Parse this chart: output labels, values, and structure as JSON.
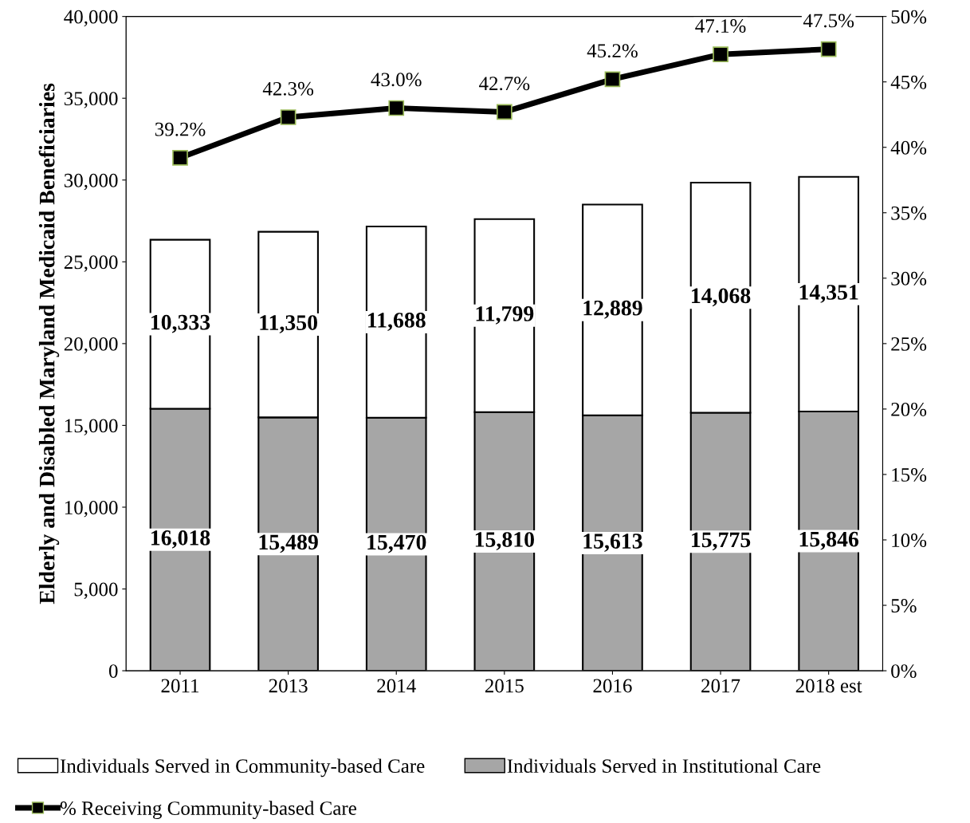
{
  "chart_data": {
    "type": "bar",
    "stacked": true,
    "ylabel": "Elderly and Disabled Maryland Medicaid Beneficiaries",
    "categories": [
      "2011",
      "2013",
      "2014",
      "2015",
      "2016",
      "2017",
      "2018 est"
    ],
    "series": [
      {
        "name": "Individuals Served in Institutional Care",
        "color": "#a6a6a6",
        "values": [
          16018,
          15489,
          15470,
          15810,
          15613,
          15775,
          15846
        ],
        "value_labels": [
          "16,018",
          "15,489",
          "15,470",
          "15,810",
          "15,613",
          "15,775",
          "15,846"
        ]
      },
      {
        "name": "Individuals Served in Community-based Care",
        "color": "#ffffff",
        "values": [
          10333,
          11350,
          11688,
          11799,
          12889,
          14068,
          14351
        ],
        "value_labels": [
          "10,333",
          "11,350",
          "11,688",
          "11,799",
          "12,889",
          "14,068",
          "14,351"
        ]
      },
      {
        "name": "% Receiving Community-based Care",
        "type": "line",
        "axis": "y2",
        "color": "#000000",
        "marker": "square",
        "values": [
          39.2,
          42.3,
          43.0,
          42.7,
          45.2,
          47.1,
          47.5
        ],
        "value_labels": [
          "39.2%",
          "42.3%",
          "43.0%",
          "42.7%",
          "45.2%",
          "47.1%",
          "47.5%"
        ]
      }
    ],
    "ylim": [
      0,
      40000
    ],
    "yticks": [
      {
        "value": 0,
        "label": "0"
      },
      {
        "value": 5000,
        "label": "5,000"
      },
      {
        "value": 10000,
        "label": "10,000"
      },
      {
        "value": 15000,
        "label": "15,000"
      },
      {
        "value": 20000,
        "label": "20,000"
      },
      {
        "value": 25000,
        "label": "25,000"
      },
      {
        "value": 30000,
        "label": "30,000"
      },
      {
        "value": 35000,
        "label": "35,000"
      },
      {
        "value": 40000,
        "label": "40,000"
      }
    ],
    "y2lim": [
      0,
      50
    ],
    "y2ticks": [
      {
        "value": 0,
        "label": "0%"
      },
      {
        "value": 5,
        "label": "5%"
      },
      {
        "value": 10,
        "label": "10%"
      },
      {
        "value": 15,
        "label": "15%"
      },
      {
        "value": 20,
        "label": "20%"
      },
      {
        "value": 25,
        "label": "25%"
      },
      {
        "value": 30,
        "label": "30%"
      },
      {
        "value": 35,
        "label": "35%"
      },
      {
        "value": 40,
        "label": "40%"
      },
      {
        "value": 45,
        "label": "45%"
      },
      {
        "value": 50,
        "label": "50%"
      }
    ],
    "grid": false,
    "legend": "bottom"
  }
}
